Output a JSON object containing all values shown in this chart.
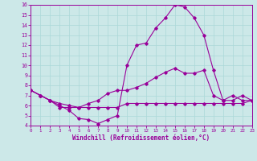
{
  "bg_color": "#cce8e8",
  "line_color": "#990099",
  "xlim": [
    0,
    23
  ],
  "ylim": [
    4,
    16
  ],
  "xticks": [
    0,
    1,
    2,
    3,
    4,
    5,
    6,
    7,
    8,
    9,
    10,
    11,
    12,
    13,
    14,
    15,
    16,
    17,
    18,
    19,
    20,
    21,
    22,
    23
  ],
  "yticks": [
    4,
    5,
    6,
    7,
    8,
    9,
    10,
    11,
    12,
    13,
    14,
    15,
    16
  ],
  "series1_x": [
    0,
    1,
    2,
    3,
    4,
    5,
    6,
    7,
    8,
    9,
    10,
    11,
    12,
    13,
    14,
    15,
    16,
    17,
    18,
    19,
    20,
    21,
    22,
    23
  ],
  "series1_y": [
    7.5,
    7.0,
    6.5,
    5.8,
    5.8,
    5.8,
    5.8,
    5.8,
    5.8,
    5.8,
    6.2,
    6.2,
    6.2,
    6.2,
    6.2,
    6.2,
    6.2,
    6.2,
    6.2,
    6.2,
    6.2,
    6.2,
    6.2,
    6.5
  ],
  "series2_x": [
    0,
    1,
    2,
    3,
    4,
    5,
    6,
    7,
    8,
    9,
    10,
    11,
    12,
    13,
    14,
    15,
    16,
    17,
    18,
    19,
    20,
    21,
    22,
    23
  ],
  "series2_y": [
    7.5,
    7.0,
    6.5,
    6.2,
    6.0,
    5.8,
    6.2,
    6.5,
    7.2,
    7.5,
    7.5,
    7.8,
    8.2,
    8.8,
    9.3,
    9.7,
    9.2,
    9.2,
    9.5,
    7.0,
    6.5,
    7.0,
    6.5,
    6.5
  ],
  "series3_x": [
    0,
    1,
    2,
    3,
    4,
    5,
    6,
    7,
    8,
    9,
    10,
    11,
    12,
    13,
    14,
    15,
    16,
    17,
    18,
    19,
    20,
    21,
    22,
    23
  ],
  "series3_y": [
    7.5,
    7.0,
    6.5,
    6.0,
    5.5,
    4.7,
    4.6,
    4.2,
    4.6,
    5.0,
    10.0,
    12.0,
    12.2,
    13.7,
    14.7,
    16.0,
    15.8,
    14.7,
    13.0,
    9.5,
    6.5,
    6.5,
    7.0,
    6.5
  ],
  "xlabel": "Windchill (Refroidissement éolien,°C)"
}
